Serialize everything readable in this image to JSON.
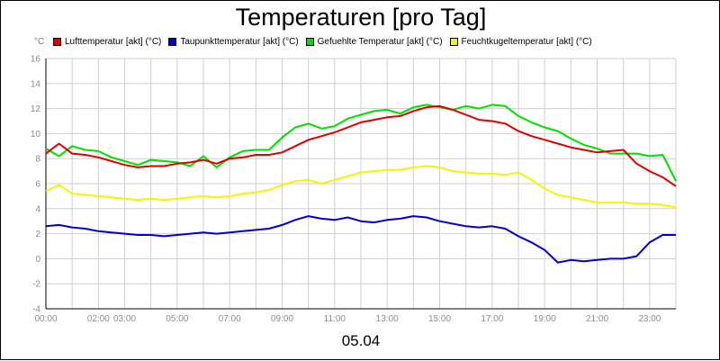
{
  "chart_data": {
    "type": "line",
    "title": "Temperaturen [pro Tag]",
    "xlabel": "05.04",
    "ylabel": "°C",
    "ylim": [
      -4,
      16
    ],
    "yticks": [
      -4,
      -2,
      0,
      2,
      4,
      6,
      8,
      10,
      12,
      14,
      16
    ],
    "xlim": [
      0,
      24
    ],
    "xticks": [
      {
        "x": 0,
        "label": "00:00"
      },
      {
        "x": 2,
        "label": "02:00"
      },
      {
        "x": 3,
        "label": "03:00"
      },
      {
        "x": 5,
        "label": "05:00"
      },
      {
        "x": 7,
        "label": "07:00"
      },
      {
        "x": 9,
        "label": "09:00"
      },
      {
        "x": 11,
        "label": "11:00"
      },
      {
        "x": 13,
        "label": "13:00"
      },
      {
        "x": 15,
        "label": "15:00"
      },
      {
        "x": 17,
        "label": "17:00"
      },
      {
        "x": 19,
        "label": "19:00"
      },
      {
        "x": 21,
        "label": "21:00"
      },
      {
        "x": 23,
        "label": "23:00"
      }
    ],
    "grid": true,
    "legend_position": "top",
    "series": [
      {
        "name": "Lufttemperatur [akt] (°C)",
        "color": "#e00000",
        "x": [
          0,
          0.5,
          1,
          1.5,
          2,
          2.5,
          3,
          3.5,
          4,
          4.5,
          5,
          5.5,
          6,
          6.5,
          7,
          7.5,
          8,
          8.5,
          9,
          9.5,
          10,
          10.5,
          11,
          11.5,
          12,
          12.5,
          13,
          13.5,
          14,
          14.5,
          15,
          15.5,
          16,
          16.5,
          17,
          17.5,
          18,
          18.5,
          19,
          19.5,
          20,
          20.5,
          21,
          21.5,
          22,
          22.5,
          23,
          23.5,
          24
        ],
        "values": [
          8.4,
          9.2,
          8.4,
          8.3,
          8.1,
          7.8,
          7.5,
          7.3,
          7.4,
          7.4,
          7.6,
          7.7,
          7.9,
          7.6,
          8.0,
          8.1,
          8.3,
          8.3,
          8.5,
          9.0,
          9.5,
          9.8,
          10.1,
          10.5,
          10.9,
          11.1,
          11.3,
          11.4,
          11.8,
          12.1,
          12.2,
          11.9,
          11.5,
          11.1,
          11.0,
          10.8,
          10.2,
          9.8,
          9.5,
          9.2,
          8.9,
          8.7,
          8.5,
          8.6,
          8.7,
          7.6,
          7.0,
          6.5,
          5.8
        ]
      },
      {
        "name": "Taupunkttemperatur [akt] (°C)",
        "color": "#0000d0",
        "x": [
          0,
          0.5,
          1,
          1.5,
          2,
          2.5,
          3,
          3.5,
          4,
          4.5,
          5,
          5.5,
          6,
          6.5,
          7,
          7.5,
          8,
          8.5,
          9,
          9.5,
          10,
          10.5,
          11,
          11.5,
          12,
          12.5,
          13,
          13.5,
          14,
          14.5,
          15,
          15.5,
          16,
          16.5,
          17,
          17.5,
          18,
          18.5,
          19,
          19.5,
          20,
          20.5,
          21,
          21.5,
          22,
          22.5,
          23,
          23.5,
          24
        ],
        "values": [
          2.6,
          2.7,
          2.5,
          2.4,
          2.2,
          2.1,
          2.0,
          1.9,
          1.9,
          1.8,
          1.9,
          2.0,
          2.1,
          2.0,
          2.1,
          2.2,
          2.3,
          2.4,
          2.7,
          3.1,
          3.4,
          3.2,
          3.1,
          3.3,
          3.0,
          2.9,
          3.1,
          3.2,
          3.4,
          3.3,
          3.0,
          2.8,
          2.6,
          2.5,
          2.6,
          2.4,
          1.8,
          1.3,
          0.7,
          -0.3,
          -0.1,
          -0.2,
          -0.1,
          0.0,
          0.0,
          0.2,
          1.3,
          1.9,
          1.9
        ]
      },
      {
        "name": "Gefuehlte Temperatur [akt] (°C)",
        "color": "#00e000",
        "x": [
          0,
          0.5,
          1,
          1.5,
          2,
          2.5,
          3,
          3.5,
          4,
          4.5,
          5,
          5.5,
          6,
          6.5,
          7,
          7.5,
          8,
          8.5,
          9,
          9.5,
          10,
          10.5,
          11,
          11.5,
          12,
          12.5,
          13,
          13.5,
          14,
          14.5,
          15,
          15.5,
          16,
          16.5,
          17,
          17.5,
          18,
          18.5,
          19,
          19.5,
          20,
          20.5,
          21,
          21.5,
          22,
          22.5,
          23,
          23.5,
          24
        ],
        "values": [
          8.8,
          8.2,
          9.0,
          8.7,
          8.6,
          8.1,
          7.8,
          7.5,
          7.9,
          7.8,
          7.7,
          7.4,
          8.2,
          7.3,
          8.1,
          8.6,
          8.7,
          8.7,
          9.7,
          10.5,
          10.8,
          10.4,
          10.6,
          11.2,
          11.5,
          11.8,
          11.9,
          11.6,
          12.1,
          12.3,
          12.1,
          11.9,
          12.2,
          12.0,
          12.3,
          12.2,
          11.4,
          10.9,
          10.5,
          10.2,
          9.6,
          9.1,
          8.8,
          8.4,
          8.4,
          8.4,
          8.2,
          8.3,
          6.2
        ]
      },
      {
        "name": "Feuchtkugeltemperatur [akt] (°C)",
        "color": "#f5f500",
        "x": [
          0,
          0.5,
          1,
          1.5,
          2,
          2.5,
          3,
          3.5,
          4,
          4.5,
          5,
          5.5,
          6,
          6.5,
          7,
          7.5,
          8,
          8.5,
          9,
          9.5,
          10,
          10.5,
          11,
          11.5,
          12,
          12.5,
          13,
          13.5,
          14,
          14.5,
          15,
          15.5,
          16,
          16.5,
          17,
          17.5,
          18,
          18.5,
          19,
          19.5,
          20,
          20.5,
          21,
          21.5,
          22,
          22.5,
          23,
          23.5,
          24
        ],
        "values": [
          5.4,
          5.9,
          5.2,
          5.1,
          5.0,
          4.9,
          4.8,
          4.7,
          4.8,
          4.7,
          4.8,
          4.9,
          5.0,
          4.9,
          5.0,
          5.2,
          5.3,
          5.5,
          5.9,
          6.2,
          6.3,
          6.0,
          6.3,
          6.6,
          6.9,
          7.0,
          7.1,
          7.1,
          7.3,
          7.4,
          7.3,
          7.0,
          6.9,
          6.8,
          6.8,
          6.7,
          6.9,
          6.3,
          5.6,
          5.1,
          4.9,
          4.7,
          4.5,
          4.5,
          4.5,
          4.4,
          4.4,
          4.3,
          4.1
        ]
      }
    ]
  }
}
